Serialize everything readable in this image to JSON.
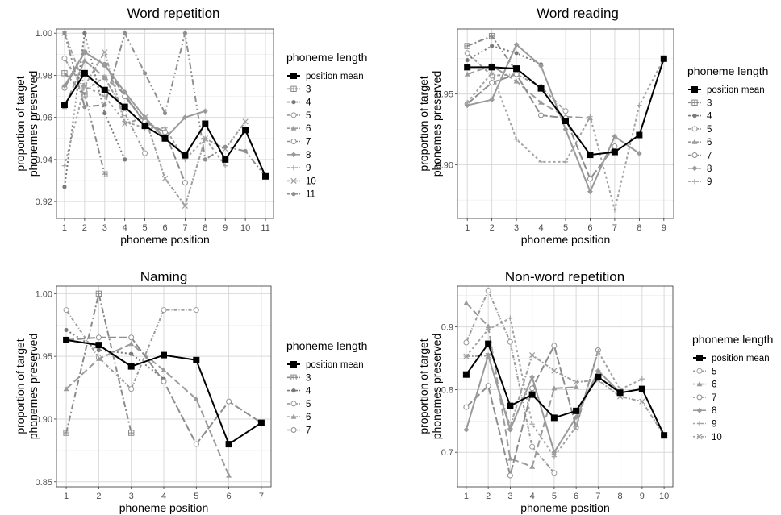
{
  "chart_data": [
    {
      "type": "line",
      "title": "Word repetition",
      "xlabel": "phoneme position",
      "ylabel": "proportion of target phonemes preserved",
      "x_ticks": [
        1,
        2,
        3,
        4,
        5,
        6,
        7,
        8,
        9,
        10,
        11
      ],
      "y_ticks": [
        0.92,
        0.94,
        0.96,
        0.98,
        1.0
      ],
      "y_tick_labels": [
        "0.92",
        "0.94",
        "0.96",
        "0.98",
        "1.00"
      ],
      "xlim": [
        0.6,
        11.4
      ],
      "ylim": [
        0.912,
        1.002
      ],
      "legend_title": "phoneme length",
      "legend_position": "right",
      "mean": {
        "name": "position mean",
        "x": [
          1,
          2,
          3,
          4,
          5,
          6,
          7,
          8,
          9,
          10,
          11
        ],
        "y": [
          0.966,
          0.981,
          0.973,
          0.965,
          0.956,
          0.95,
          0.942,
          0.957,
          0.94,
          0.954,
          0.932
        ]
      },
      "series": [
        {
          "name": "3",
          "x": [
            1,
            2,
            3
          ],
          "y": [
            0.981,
            0.971,
            0.933
          ]
        },
        {
          "name": "4",
          "x": [
            1,
            2,
            3,
            4
          ],
          "y": [
            0.927,
            1.0,
            0.962,
            0.94
          ]
        },
        {
          "name": "5",
          "x": [
            1,
            2,
            3,
            4,
            5
          ],
          "y": [
            0.988,
            0.973,
            0.979,
            0.962,
            0.943
          ]
        },
        {
          "name": "6",
          "x": [
            1,
            2,
            3,
            4,
            5,
            6
          ],
          "y": [
            0.965,
            0.987,
            0.979,
            0.971,
            0.957,
            0.953
          ]
        },
        {
          "name": "7",
          "x": [
            1,
            2,
            3,
            4,
            5,
            6,
            7
          ],
          "y": [
            0.974,
            0.991,
            0.985,
            0.97,
            0.958,
            0.953,
            0.929
          ]
        },
        {
          "name": "8",
          "x": [
            1,
            2,
            3,
            4,
            5,
            6,
            7,
            8
          ],
          "y": [
            0.975,
            0.991,
            0.985,
            0.972,
            0.96,
            0.95,
            0.96,
            0.963
          ]
        },
        {
          "name": "9",
          "x": [
            1,
            2,
            3,
            4,
            5,
            6,
            7,
            8,
            9
          ],
          "y": [
            0.937,
            0.975,
            0.97,
            0.958,
            0.955,
            0.955,
            0.94,
            0.95,
            0.937
          ]
        },
        {
          "name": "10",
          "x": [
            1,
            2,
            3,
            4,
            5,
            6,
            7,
            8,
            9,
            10
          ],
          "y": [
            1.0,
            0.975,
            0.991,
            0.957,
            0.96,
            0.931,
            0.918,
            0.95,
            0.945,
            0.958
          ]
        },
        {
          "name": "11",
          "x": [
            1,
            2,
            3,
            4,
            5,
            6,
            7,
            8,
            9,
            10,
            11
          ],
          "y": [
            1.0,
            0.965,
            0.966,
            1.0,
            0.981,
            0.962,
            1.0,
            0.94,
            0.946,
            0.944,
            0.932
          ]
        }
      ]
    },
    {
      "type": "line",
      "title": "Word reading",
      "xlabel": "phoneme position",
      "ylabel": "proportion of target phonemes preserved",
      "x_ticks": [
        1,
        2,
        3,
        4,
        5,
        6,
        7,
        8,
        9
      ],
      "y_ticks": [
        0.9,
        0.95
      ],
      "y_tick_labels": [
        "0.90",
        "0.95"
      ],
      "xlim": [
        0.6,
        9.4
      ],
      "ylim": [
        0.862,
        0.996
      ],
      "legend_title": "phoneme length",
      "legend_position": "right",
      "mean": {
        "name": "position mean",
        "x": [
          1,
          2,
          3,
          4,
          5,
          6,
          7,
          8,
          9
        ],
        "y": [
          0.969,
          0.969,
          0.968,
          0.954,
          0.931,
          0.907,
          0.909,
          0.921,
          0.975
        ]
      },
      "series": [
        {
          "name": "3",
          "x": [
            1,
            2,
            3
          ],
          "y": [
            0.984,
            0.991,
            0.966
          ]
        },
        {
          "name": "4",
          "x": [
            1,
            2,
            3,
            4
          ],
          "y": [
            0.974,
            0.984,
            0.979,
            0.971
          ]
        },
        {
          "name": "5",
          "x": [
            1,
            2,
            3,
            4,
            5
          ],
          "y": [
            0.979,
            0.963,
            0.964,
            0.955,
            0.938
          ]
        },
        {
          "name": "6",
          "x": [
            1,
            2,
            3,
            4,
            5,
            6
          ],
          "y": [
            0.964,
            0.97,
            0.959,
            0.944,
            0.934,
            0.933
          ]
        },
        {
          "name": "7",
          "x": [
            1,
            2,
            3,
            4,
            5,
            6,
            7
          ],
          "y": [
            0.943,
            0.958,
            0.964,
            0.935,
            0.933,
            0.89,
            0.913
          ]
        },
        {
          "name": "8",
          "x": [
            1,
            2,
            3,
            4,
            5,
            6,
            7,
            8
          ],
          "y": [
            0.942,
            0.946,
            0.985,
            0.97,
            0.925,
            0.881,
            0.92,
            0.908
          ]
        },
        {
          "name": "9",
          "x": [
            1,
            2,
            3,
            4,
            5,
            6,
            7,
            8,
            9
          ],
          "y": [
            0.944,
            0.965,
            0.918,
            0.902,
            0.902,
            0.934,
            0.868,
            0.942,
            0.975
          ]
        }
      ]
    },
    {
      "type": "line",
      "title": "Naming",
      "xlabel": "phoneme position",
      "ylabel": "proportion of target phonemes preserved",
      "x_ticks": [
        1,
        2,
        3,
        4,
        5,
        6,
        7
      ],
      "y_ticks": [
        0.85,
        0.9,
        0.95,
        1.0
      ],
      "y_tick_labels": [
        "0.85",
        "0.90",
        "0.95",
        "1.00"
      ],
      "xlim": [
        0.7,
        7.3
      ],
      "ylim": [
        0.846,
        1.006
      ],
      "legend_title": "phoneme length",
      "legend_position": "right",
      "mean": {
        "name": "position mean",
        "x": [
          1,
          2,
          3,
          4,
          5,
          6,
          7
        ],
        "y": [
          0.963,
          0.959,
          0.942,
          0.951,
          0.947,
          0.88,
          0.897
        ]
      },
      "series": [
        {
          "name": "3",
          "x": [
            1,
            2,
            3
          ],
          "y": [
            0.889,
            1.0,
            0.889
          ]
        },
        {
          "name": "4",
          "x": [
            1,
            2,
            3,
            4
          ],
          "y": [
            0.971,
            0.955,
            0.952,
            0.932
          ]
        },
        {
          "name": "5",
          "x": [
            1,
            2,
            3,
            4,
            5
          ],
          "y": [
            0.987,
            0.949,
            0.924,
            0.987,
            0.987
          ]
        },
        {
          "name": "6",
          "x": [
            1,
            2,
            3,
            4,
            5,
            6
          ],
          "y": [
            0.924,
            0.948,
            0.96,
            0.939,
            0.916,
            0.855
          ]
        },
        {
          "name": "7",
          "x": [
            1,
            2,
            3,
            4,
            5,
            6,
            7
          ],
          "y": [
            0.963,
            0.965,
            0.965,
            0.93,
            0.88,
            0.914,
            0.897
          ]
        }
      ]
    },
    {
      "type": "line",
      "title": "Non-word repetition",
      "xlabel": "phoneme position",
      "ylabel": "proportion of target phonemes preserved",
      "x_ticks": [
        1,
        2,
        3,
        4,
        5,
        6,
        7,
        8,
        9,
        10
      ],
      "y_ticks": [
        0.7,
        0.8,
        0.9
      ],
      "y_tick_labels": [
        "0.7",
        "0.8",
        "0.9"
      ],
      "xlim": [
        0.6,
        10.4
      ],
      "ylim": [
        0.645,
        0.965
      ],
      "legend_title": "phoneme length",
      "legend_position": "right",
      "mean": {
        "name": "position mean",
        "x": [
          1,
          2,
          3,
          4,
          5,
          6,
          7,
          8,
          9,
          10
        ],
        "y": [
          0.824,
          0.873,
          0.774,
          0.792,
          0.755,
          0.766,
          0.82,
          0.795,
          0.801,
          0.727
        ]
      },
      "series": [
        {
          "name": "5",
          "x": [
            1,
            2,
            3,
            4,
            5
          ],
          "y": [
            0.875,
            0.958,
            0.876,
            0.709,
            0.667
          ]
        },
        {
          "name": "6",
          "x": [
            1,
            2,
            3,
            4,
            5,
            6
          ],
          "y": [
            0.938,
            0.901,
            0.69,
            0.677,
            0.802,
            0.804
          ]
        },
        {
          "name": "7",
          "x": [
            1,
            2,
            3,
            4,
            5,
            6,
            7
          ],
          "y": [
            0.772,
            0.806,
            0.663,
            0.802,
            0.87,
            0.74,
            0.863
          ]
        },
        {
          "name": "8",
          "x": [
            1,
            2,
            3,
            4,
            5,
            6,
            7,
            8
          ],
          "y": [
            0.736,
            0.855,
            0.736,
            0.82,
            0.7,
            0.756,
            0.83,
            0.795
          ]
        },
        {
          "name": "9",
          "x": [
            1,
            2,
            3,
            4,
            5,
            6,
            7,
            8,
            9
          ],
          "y": [
            0.853,
            0.896,
            0.914,
            0.745,
            0.693,
            0.741,
            0.861,
            0.8,
            0.817
          ]
        },
        {
          "name": "10",
          "x": [
            1,
            2,
            3,
            4,
            5,
            6,
            7,
            8,
            9,
            10
          ],
          "y": [
            0.853,
            0.854,
            0.741,
            0.855,
            0.83,
            0.812,
            0.815,
            0.789,
            0.781,
            0.727
          ]
        }
      ]
    }
  ]
}
